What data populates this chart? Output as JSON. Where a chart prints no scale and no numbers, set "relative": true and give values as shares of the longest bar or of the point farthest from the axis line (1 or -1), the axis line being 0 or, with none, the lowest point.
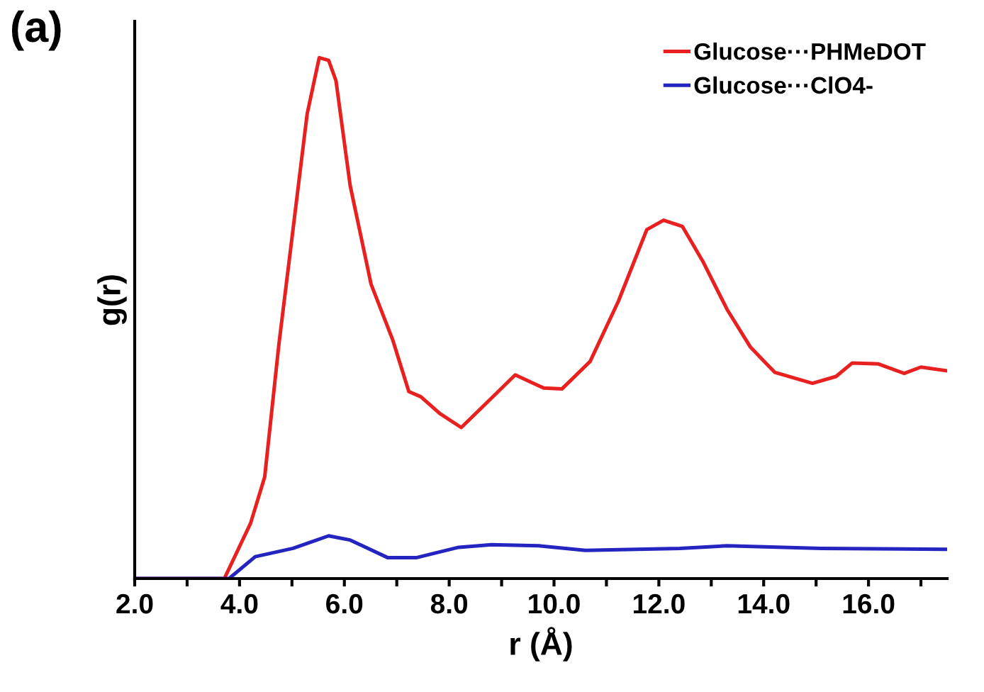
{
  "chart_data": {
    "type": "line",
    "relative": true,
    "xlabel": "r (Å)",
    "ylabel": "g(r)",
    "annotations": [
      "(a)"
    ],
    "legend": "top right",
    "grid": false,
    "xlim": [
      2,
      17.5
    ],
    "xticks": [
      {
        "value": 2,
        "label": "2.0"
      },
      {
        "value": 3,
        "label": null
      },
      {
        "value": 4,
        "label": "4.0"
      },
      {
        "value": 5,
        "label": null
      },
      {
        "value": 6,
        "label": "6.0"
      },
      {
        "value": 7,
        "label": null
      },
      {
        "value": 8,
        "label": "8.0"
      },
      {
        "value": 9,
        "label": null
      },
      {
        "value": 10,
        "label": "10.0"
      },
      {
        "value": 11,
        "label": null
      },
      {
        "value": 12,
        "label": "12.0"
      },
      {
        "value": 13,
        "label": null
      },
      {
        "value": 14,
        "label": "14.0"
      },
      {
        "value": 15,
        "label": null
      },
      {
        "value": 16,
        "label": "16.0"
      },
      {
        "value": 17,
        "label": null
      }
    ],
    "series": [
      {
        "name": "Glucose···PHMeDOT",
        "color": "#e82020",
        "x": [
          2.0,
          3.71,
          4.21,
          4.48,
          4.75,
          5.02,
          5.29,
          5.52,
          5.7,
          5.84,
          6.11,
          6.51,
          6.92,
          7.23,
          7.46,
          7.82,
          8.23,
          8.72,
          9.26,
          9.8,
          10.15,
          10.69,
          11.23,
          11.77,
          12.09,
          12.45,
          12.85,
          13.3,
          13.75,
          14.21,
          14.93,
          15.38,
          15.69,
          16.19,
          16.68,
          17.0,
          17.5
        ],
        "values": [
          0,
          0,
          0.106,
          0.195,
          0.449,
          0.67,
          0.892,
          1.0,
          0.995,
          0.956,
          0.755,
          0.565,
          0.459,
          0.359,
          0.349,
          0.317,
          0.29,
          0.338,
          0.391,
          0.366,
          0.364,
          0.417,
          0.533,
          0.67,
          0.688,
          0.676,
          0.607,
          0.517,
          0.444,
          0.396,
          0.375,
          0.388,
          0.414,
          0.412,
          0.394,
          0.406,
          0.399
        ]
      },
      {
        "name": "Glucose···ClO4-",
        "color": "#2424c0",
        "x": [
          2.0,
          3.8,
          4.3,
          5.02,
          5.7,
          6.11,
          6.83,
          7.37,
          8.18,
          8.81,
          9.71,
          10.6,
          12.4,
          13.3,
          15.1,
          17.5
        ],
        "values": [
          0,
          0,
          0.042,
          0.058,
          0.082,
          0.074,
          0.04,
          0.04,
          0.06,
          0.065,
          0.063,
          0.054,
          0.058,
          0.063,
          0.058,
          0.056
        ]
      }
    ]
  }
}
